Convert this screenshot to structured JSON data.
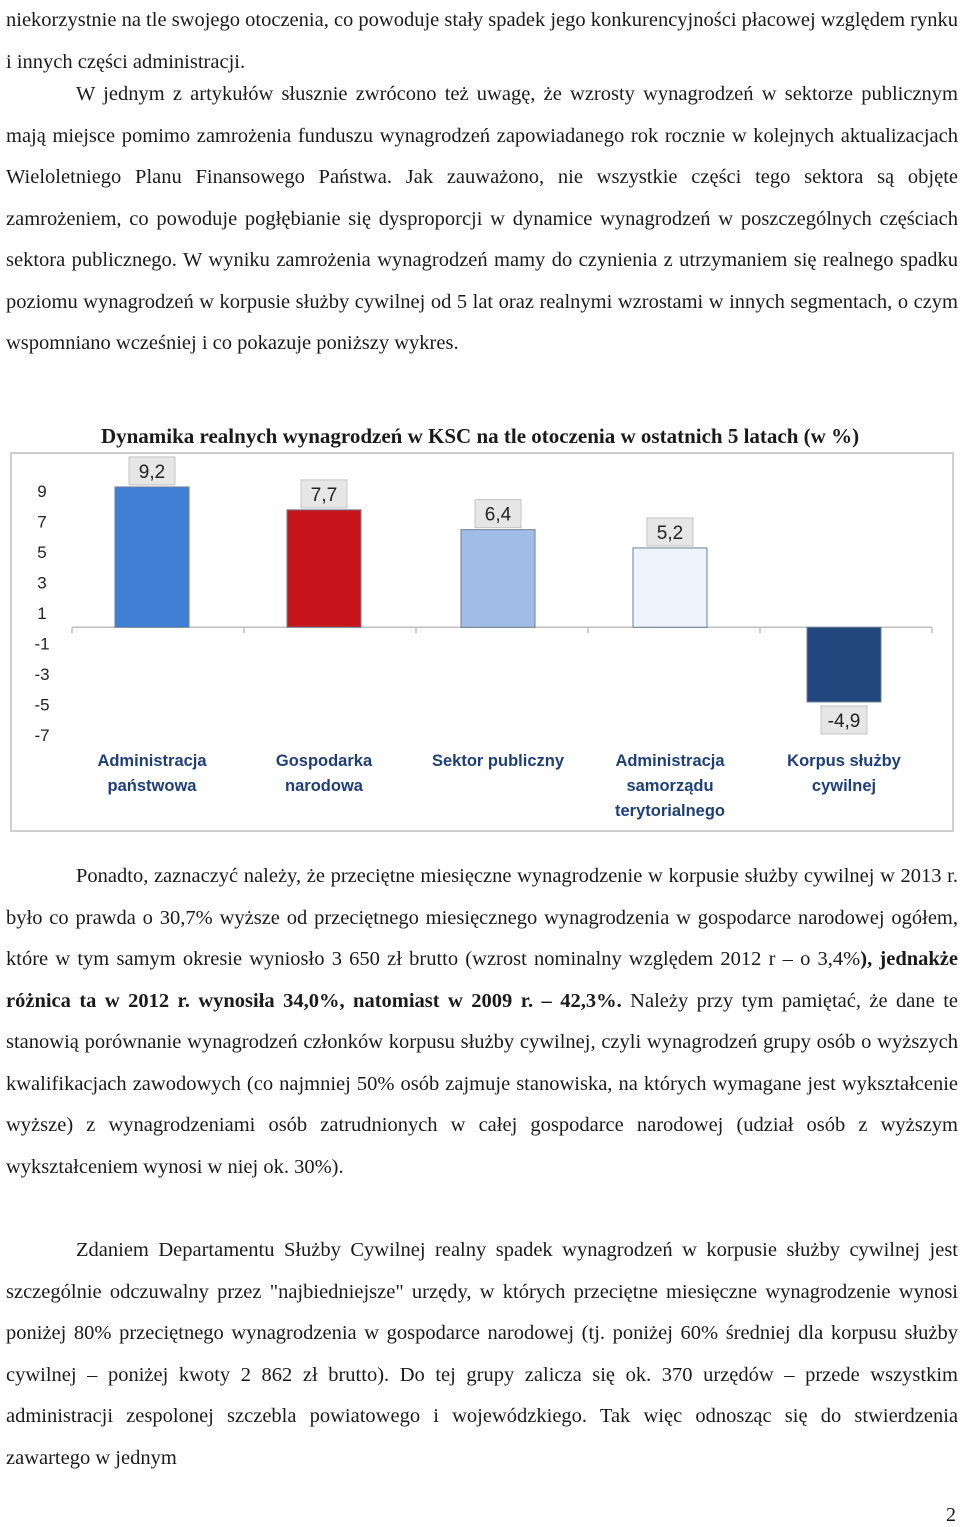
{
  "paragraphs": {
    "p1": "niekorzystnie na tle swojego otoczenia, co powoduje stały spadek jego konkurencyjności płacowej względem rynku i innych części administracji.",
    "p2": "W jednym z artykułów słusznie zwrócono też uwagę, że wzrosty wynagrodzeń w sektorze publicznym mają miejsce pomimo zamrożenia funduszu wynagrodzeń zapowiadanego rok rocznie w kolejnych aktualizacjach Wieloletniego Planu Finansowego Państwa. Jak zauważono, nie wszystkie części tego sektora są objęte zamrożeniem, co powoduje pogłębianie się dysproporcji w dynamice wynagrodzeń w poszczególnych częściach sektora publicznego. W wyniku zamrożenia wynagrodzeń mamy do czynienia z utrzymaniem się realnego spadku poziomu wynagrodzeń w korpusie służby cywilnej od 5 lat oraz realnymi wzrostami w innych segmentach, o czym wspomniano wcześniej i co pokazuje poniższy wykres.",
    "p3_start": "Ponadto, zaznaczyć należy, że przeciętne miesięczne wynagrodzenie w korpusie służby cywilnej w 2013 r. było co prawda o 30,7% wyższe od przeciętnego miesięcznego wynagrodzenia w gospodarce narodowej ogółem, które w tym samym okresie wyniosło 3 650 zł brutto (wzrost nominalny względem 2012 r – o 3,4%",
    "p3_bold": "), jednakże różnica ta w 2012 r. wynosiła 34,0%, natomiast w 2009 r. – 42,3%.",
    "p3_end": " Należy przy tym pamiętać, że dane te stanowią porównanie wynagrodzeń członków korpusu służby cywilnej, czyli wynagrodzeń grupy osób o wyższych kwalifikacjach zawodowych (co najmniej 50% osób zajmuje stanowiska, na których wymagane jest wykształcenie wyższe) z wynagrodzeniami osób zatrudnionych w całej gospodarce narodowej (udział osób z wyższym wykształceniem wynosi w niej ok. 30%).",
    "p4": "Zdaniem Departamentu Służby Cywilnej realny spadek wynagrodzeń w korpusie służby cywilnej jest szczególnie odczuwalny przez \"najbiedniejsze\" urzędy, w których przeciętne miesięczne wynagrodzenie wynosi poniżej 80% przeciętnego wynagrodzenia w gospodarce narodowej (tj. poniżej 60% średniej dla korpusu służby cywilnej – poniżej kwoty 2 862 zł brutto). Do tej grupy zalicza się ok. 370 urzędów – przede wszystkim administracji zespolonej szczebla powiatowego i wojewódzkiego. Tak więc odnosząc się do stwierdzenia zawartego w jednym"
  },
  "page_number": "2",
  "chart_data": {
    "type": "bar",
    "title": "Dynamika realnych wynagrodzeń w KSC na tle otoczenia w ostatnich 5 latach (w %)",
    "categories": [
      [
        "Administracja",
        "państwowa"
      ],
      [
        "Gospodarka",
        "narodowa"
      ],
      [
        "Sektor publiczny"
      ],
      [
        "Administracja",
        "samorządu",
        "terytorialnego"
      ],
      [
        "Korpus służby",
        "cywilnej"
      ]
    ],
    "values": [
      9.2,
      7.7,
      6.4,
      5.2,
      -4.9
    ],
    "value_labels": [
      "9,2",
      "7,7",
      "6,4",
      "5,2",
      "-4,9"
    ],
    "colors": [
      "#3f7fd6",
      "#c8141b",
      "#9fbde6",
      "#eef4fb",
      "#23467e"
    ],
    "y_ticks": [
      9,
      7,
      5,
      3,
      1,
      -1,
      -3,
      -5,
      -7
    ],
    "ylim": [
      -7,
      9
    ],
    "grid": false,
    "legend": "none"
  }
}
